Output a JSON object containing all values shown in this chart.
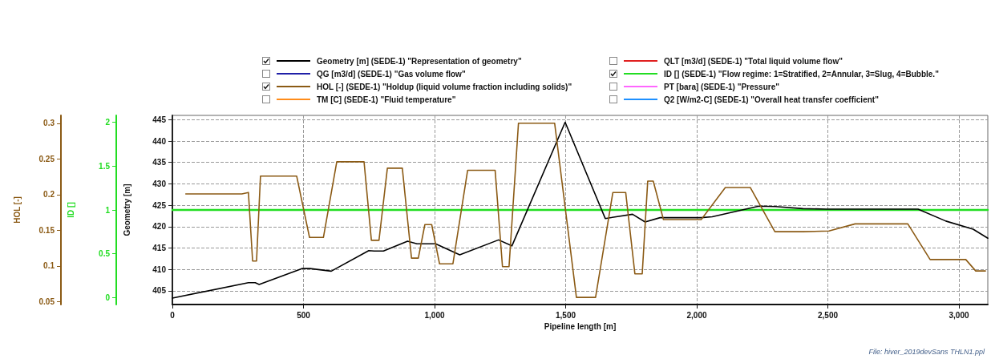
{
  "chart_data": {
    "type": "line",
    "xlabel": "Pipeline length [m]",
    "ylabel": "Geometry [m]",
    "y2label": "HOL [-]",
    "y3label": "ID []",
    "xlim": [
      0,
      3110
    ],
    "xticks": [
      0,
      500,
      {
        "value": 1000,
        "label": "1,000"
      },
      {
        "value": 1500,
        "label": "1,500"
      },
      {
        "value": 2000,
        "label": "2,000"
      },
      {
        "value": 2500,
        "label": "2,500"
      },
      {
        "value": 3000,
        "label": "3,000"
      }
    ],
    "ylim": [
      401.8,
      446
    ],
    "yticks": [
      405,
      410,
      415,
      420,
      425,
      430,
      435,
      440,
      445
    ],
    "y2lim": [
      0.046,
      0.311
    ],
    "y2ticks": [
      0.05,
      0.1,
      0.15,
      0.2,
      0.25,
      0.3
    ],
    "y3lim": [
      -0.08,
      2.08
    ],
    "y3ticks": [
      0,
      0.5,
      1,
      1.5,
      2
    ],
    "grid": true,
    "legend": "top",
    "marker": "none",
    "annotations": [
      "File: hiver_2019devSans THLN1.ppl"
    ],
    "series": [
      {
        "name": "Geometry [m] (SEDE-1) \"Representation of geometry\"",
        "color": "#000000",
        "x": [
          0,
          290,
          316,
          331,
          494,
          525,
          606,
          749,
          770,
          805,
          897,
          933,
          1004,
          1096,
          1244,
          1295,
          1498,
          1651,
          1755,
          1803,
          1860,
          2017,
          2059,
          2237,
          2300,
          2405,
          2494,
          2844,
          2950,
          3054,
          3110
        ],
        "values": [
          403.3,
          406.9,
          406.9,
          406.5,
          410.2,
          410.2,
          409.6,
          414.4,
          414.3,
          414.3,
          416.6,
          416.0,
          416.0,
          413.4,
          416.9,
          415.5,
          444.4,
          421.9,
          422.9,
          421.1,
          422.1,
          422.1,
          422.3,
          424.8,
          424.7,
          424.2,
          424.1,
          424.1,
          421.3,
          419.4,
          417.3
        ]
      },
      {
        "name": "QG [m3/d] (SEDE-1) \"Gas volume flow\"",
        "color": "#2020a8"
      },
      {
        "name": "HOL [-] (SEDE-1) \"Holdup (liquid volume fraction including solids)\"",
        "color": "#8b5a14",
        "axis": "y2",
        "x": [
          51,
          265,
          290,
          306,
          321,
          336,
          474,
          523,
          576,
          627,
          731,
          759,
          788,
          820,
          877,
          912,
          938,
          963,
          989,
          1019,
          1070,
          1126,
          1231,
          1259,
          1284,
          1320,
          1458,
          1541,
          1614,
          1680,
          1729,
          1764,
          1792,
          1813,
          1834,
          1873,
          2017,
          2109,
          2204,
          2298,
          2405,
          2504,
          2604,
          2805,
          2890,
          3026,
          3064,
          3101
        ],
        "values": [
          0.201,
          0.201,
          0.203,
          0.107,
          0.107,
          0.226,
          0.226,
          0.14,
          0.14,
          0.246,
          0.246,
          0.136,
          0.136,
          0.237,
          0.237,
          0.111,
          0.111,
          0.158,
          0.158,
          0.103,
          0.103,
          0.234,
          0.234,
          0.099,
          0.099,
          0.3,
          0.3,
          0.056,
          0.056,
          0.203,
          0.203,
          0.089,
          0.089,
          0.219,
          0.219,
          0.165,
          0.165,
          0.21,
          0.21,
          0.148,
          0.148,
          0.149,
          0.159,
          0.159,
          0.109,
          0.109,
          0.093,
          0.093
        ]
      },
      {
        "name": "TM [C] (SEDE-1) \"Fluid temperature\"",
        "color": "#ff8c1a"
      },
      {
        "name": "QLT [m3/d] (SEDE-1) \"Total liquid volume flow\"",
        "color": "#e02020"
      },
      {
        "name": "ID [] (SEDE-1) \"Flow regime: 1=Stratified, 2=Annular, 3=Slug, 4=Bubble.\"",
        "color": "#22dd22",
        "axis": "y3",
        "x": [
          0,
          3110
        ],
        "values": [
          1,
          1
        ]
      },
      {
        "name": "PT [bara] (SEDE-1) \"Pressure\"",
        "color": "#ff66ff"
      },
      {
        "name": "Q2 [W/m2-C] (SEDE-1) \"Overall heat transfer coefficient\"",
        "color": "#1e90ff"
      }
    ]
  }
}
